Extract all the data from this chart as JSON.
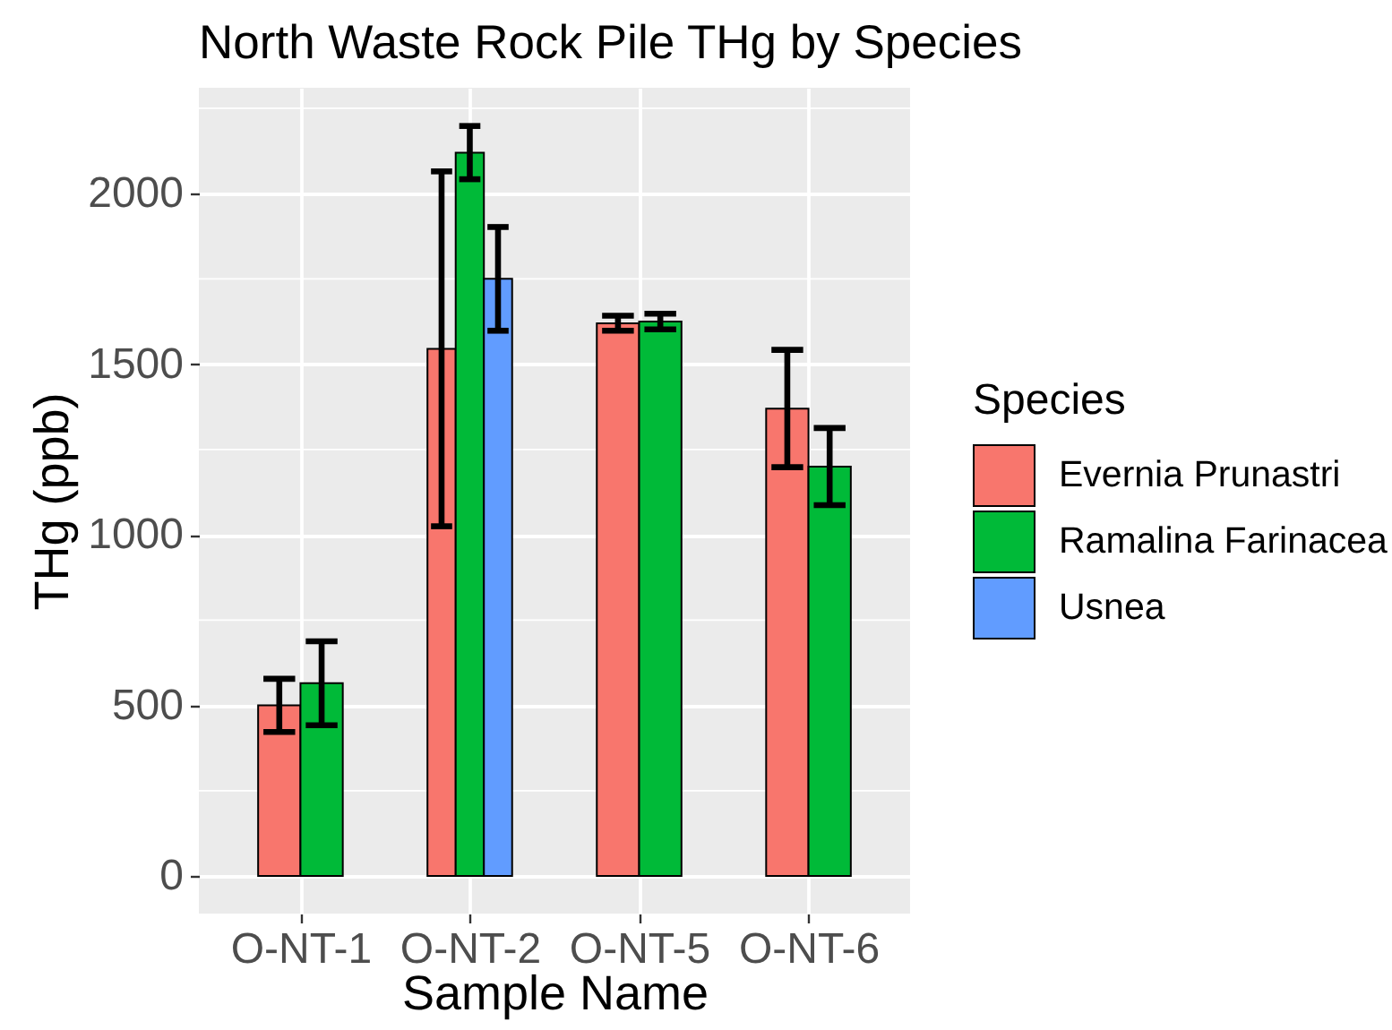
{
  "chart_data": {
    "type": "bar",
    "title": "North Waste Rock Pile THg by Species",
    "xlabel": "Sample Name",
    "ylabel": "THg (ppb)",
    "legend_title": "Species",
    "categories": [
      "O-NT-1",
      "O-NT-2",
      "O-NT-5",
      "O-NT-6"
    ],
    "series": [
      {
        "name": "Evernia Prunastri",
        "color": "#f8766d",
        "values": [
          500,
          1545,
          1620,
          1370
        ],
        "errors": [
          78,
          520,
          22,
          172
        ]
      },
      {
        "name": "Ramalina Farinacea",
        "color": "#00ba38",
        "values": [
          565,
          2120,
          1625,
          1200
        ],
        "errors": [
          123,
          78,
          23,
          113
        ]
      },
      {
        "name": "Usnea",
        "color": "#619cff",
        "values": [
          null,
          1750,
          null,
          null
        ],
        "errors": [
          null,
          152,
          null,
          null
        ]
      }
    ],
    "ylim": [
      -110,
      2310
    ],
    "yticks": [
      0,
      500,
      1000,
      1500,
      2000
    ],
    "grid": true,
    "legend": "right"
  }
}
